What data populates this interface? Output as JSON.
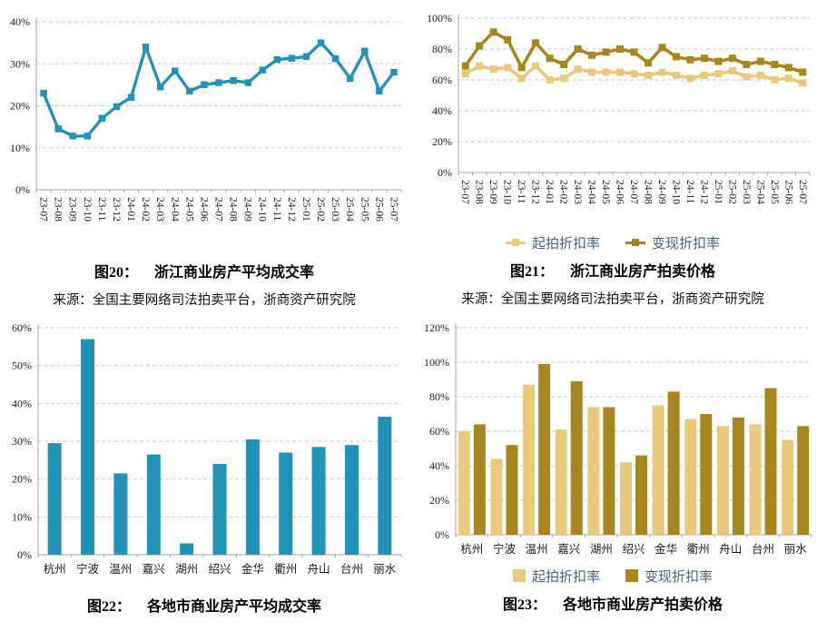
{
  "colors": {
    "teal": "#2292B6",
    "gold_light": "#E7C97B",
    "gold_dark": "#A6861E",
    "grid_line": "#CBCBCB",
    "axis_line": "#A3A3A3",
    "tick_text": "#1A1A1A",
    "legend_text": "#44627E",
    "caption_text": "#000000"
  },
  "source_text": "来源：全国主要网络司法拍卖平台，浙商资产研究院",
  "chart_data": [
    {
      "id": "fig20",
      "type": "line",
      "caption_label": "图20：",
      "caption_title": "浙江商业房产平均成交率",
      "title": "图20：浙江商业房产平均成交率",
      "x": [
        "23-07",
        "23-08",
        "23-09",
        "23-10",
        "23-11",
        "23-12",
        "24-01",
        "24-02",
        "24-03",
        "24-04",
        "24-05",
        "24-06",
        "24-07",
        "24-08",
        "24-09",
        "24-10",
        "24-11",
        "24-12",
        "25-01",
        "25-02",
        "25-03",
        "25-04",
        "25-05",
        "25-06",
        "25-07"
      ],
      "ylim": [
        0,
        40
      ],
      "yticks": [
        0,
        10,
        20,
        30,
        40
      ],
      "grid": "horizontal-dashed",
      "legend_position": "none",
      "series": [
        {
          "color": "#2292B6",
          "values": [
            23,
            14.5,
            12.8,
            12.8,
            17,
            19.8,
            22,
            34,
            24.5,
            28.3,
            23.5,
            25,
            25.5,
            26,
            25.5,
            28.5,
            31,
            31.3,
            31.7,
            35,
            31.2,
            26.5,
            33,
            23.5,
            28
          ]
        }
      ]
    },
    {
      "id": "fig21",
      "type": "line",
      "caption_label": "图21：",
      "caption_title": "浙江商业房产拍卖价格",
      "title": "图21：浙江商业房产拍卖价格",
      "x": [
        "23-07",
        "23-08",
        "23-09",
        "23-10",
        "23-11",
        "23-12",
        "24-01",
        "24-02",
        "24-03",
        "24-04",
        "24-05",
        "24-06",
        "24-07",
        "24-08",
        "24-09",
        "24-10",
        "24-11",
        "24-12",
        "25-01",
        "25-02",
        "25-03",
        "25-04",
        "25-05",
        "25-06",
        "25-07"
      ],
      "ylim": [
        0,
        100
      ],
      "yticks": [
        0,
        20,
        40,
        60,
        80,
        100
      ],
      "grid": "horizontal-dashed",
      "legend_position": "bottom",
      "series": [
        {
          "name": "起拍折扣率",
          "color": "#E7C97B",
          "values": [
            64,
            69,
            67,
            68,
            61,
            69,
            60,
            61,
            67,
            65,
            65,
            65,
            64,
            63,
            65,
            63,
            61,
            63,
            64,
            66,
            62,
            63,
            60,
            61,
            58
          ]
        },
        {
          "name": "变现折扣率",
          "color": "#A6861E",
          "values": [
            69,
            82,
            91,
            86,
            68,
            84,
            74,
            70,
            80,
            76,
            78,
            80,
            78,
            71,
            81,
            75,
            73,
            74,
            72,
            74,
            70,
            72,
            70,
            68,
            65
          ]
        }
      ]
    },
    {
      "id": "fig22",
      "type": "bar",
      "caption_label": "图22：",
      "caption_title": "各地市商业房产平均成交率",
      "title": "图22：各地市商业房产平均成交率",
      "categories": [
        "杭州",
        "宁波",
        "温州",
        "嘉兴",
        "湖州",
        "绍兴",
        "金华",
        "衢州",
        "舟山",
        "台州",
        "丽水"
      ],
      "ylim": [
        0,
        60
      ],
      "yticks": [
        0,
        10,
        20,
        30,
        40,
        50,
        60
      ],
      "grid": "horizontal-dashed",
      "legend_position": "none",
      "series": [
        {
          "color": "#2292B6",
          "values": [
            29.5,
            57,
            21.5,
            26.5,
            3,
            24,
            30.5,
            27,
            28.5,
            29,
            36.5
          ]
        }
      ]
    },
    {
      "id": "fig23",
      "type": "grouped-bar",
      "caption_label": "图23：",
      "caption_title": "各地市商业房产拍卖价格",
      "title": "图23：各地市商业房产拍卖价格",
      "categories": [
        "杭州",
        "宁波",
        "温州",
        "嘉兴",
        "湖州",
        "绍兴",
        "金华",
        "衢州",
        "舟山",
        "台州",
        "丽水"
      ],
      "ylim": [
        0,
        120
      ],
      "yticks": [
        0,
        20,
        40,
        60,
        80,
        100,
        120
      ],
      "grid": "horizontal-dashed",
      "legend_position": "bottom",
      "series": [
        {
          "name": "起拍折扣率",
          "color": "#E7C97B",
          "values": [
            60,
            44,
            87,
            61,
            74,
            42,
            75,
            67,
            63,
            64,
            55
          ]
        },
        {
          "name": "变现折扣率",
          "color": "#A6861E",
          "values": [
            64,
            52,
            99,
            89,
            74,
            46,
            83,
            70,
            68,
            85,
            63
          ]
        }
      ]
    }
  ]
}
